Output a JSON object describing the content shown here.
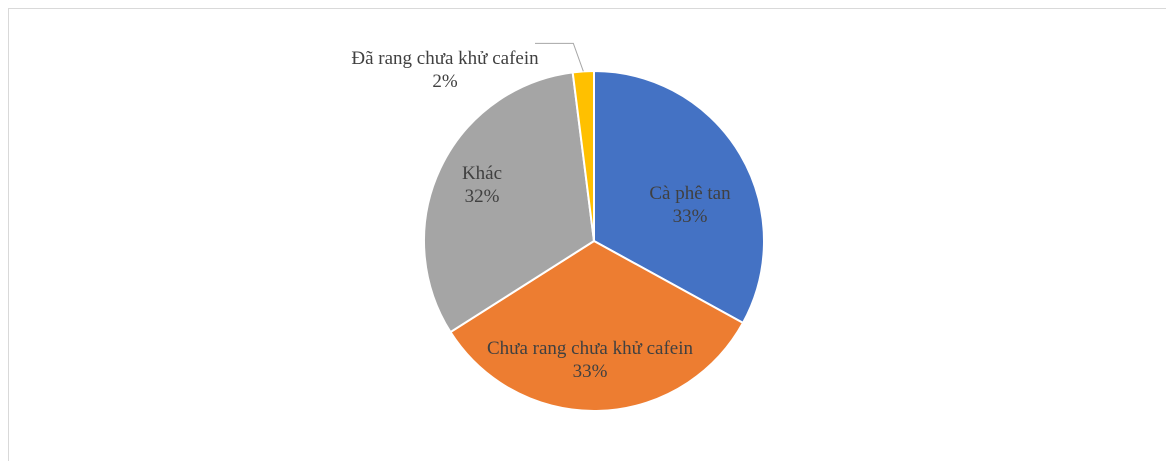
{
  "chart_data": {
    "type": "pie",
    "categories": [
      "Cà phê tan",
      "Chưa rang chưa khử cafein",
      "Khác",
      "Đã rang chưa khử cafein"
    ],
    "values": [
      33,
      33,
      32,
      2
    ],
    "value_labels": [
      "33%",
      "33%",
      "32%",
      "2%"
    ],
    "colors": [
      "#4472c4",
      "#ed7d31",
      "#a5a5a5",
      "#ffc000"
    ]
  }
}
